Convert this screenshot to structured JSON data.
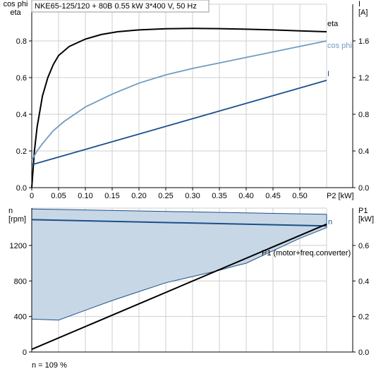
{
  "chart_data": [
    {
      "type": "line",
      "title": "NKE65-125/120 + 80B   0.55 kW   3*400 V, 50 Hz",
      "ylabel_left": "cos phi\neta",
      "ylabel_right": "I\n[A]",
      "xlabel": "P2 [kW]",
      "xlim": [
        0,
        0.55
      ],
      "ylim_left": [
        0,
        1.0
      ],
      "ylim_right": [
        0,
        2.0
      ],
      "x_ticks": [
        0,
        0.05,
        0.1,
        0.15,
        0.2,
        0.25,
        0.3,
        0.35,
        0.4,
        0.45,
        0.5
      ],
      "x_tick_labels": [
        "0",
        "0.05",
        "0.10",
        "0.15",
        "0.20",
        "0.25",
        "0.30",
        "0.35",
        "0.40",
        "0.45",
        "0.50"
      ],
      "y_ticks_left": [
        0.0,
        0.2,
        0.4,
        0.6,
        0.8
      ],
      "y_tick_labels_left": [
        "0.0",
        "0.2",
        "0.4",
        "0.6",
        "0.8"
      ],
      "y_ticks_right": [
        0.0,
        0.4,
        0.8,
        1.2,
        1.6
      ],
      "y_tick_labels_right": [
        "0.0",
        "0.4",
        "0.8",
        "1.2",
        "1.6"
      ],
      "grid": true,
      "series": [
        {
          "name": "eta",
          "axis": "left",
          "color": "#000000",
          "points": [
            [
              0,
              0.0
            ],
            [
              0.005,
              0.2
            ],
            [
              0.01,
              0.33
            ],
            [
              0.02,
              0.5
            ],
            [
              0.03,
              0.6
            ],
            [
              0.04,
              0.67
            ],
            [
              0.05,
              0.72
            ],
            [
              0.07,
              0.77
            ],
            [
              0.1,
              0.81
            ],
            [
              0.13,
              0.835
            ],
            [
              0.16,
              0.85
            ],
            [
              0.2,
              0.86
            ],
            [
              0.25,
              0.866
            ],
            [
              0.3,
              0.868
            ],
            [
              0.35,
              0.867
            ],
            [
              0.4,
              0.864
            ],
            [
              0.45,
              0.86
            ],
            [
              0.5,
              0.855
            ],
            [
              0.55,
              0.85
            ]
          ]
        },
        {
          "name": "cos phi",
          "axis": "left",
          "color": "#6f9cc1",
          "points": [
            [
              0,
              0.15
            ],
            [
              0.01,
              0.2
            ],
            [
              0.02,
              0.24
            ],
            [
              0.04,
              0.31
            ],
            [
              0.06,
              0.36
            ],
            [
              0.08,
              0.4
            ],
            [
              0.1,
              0.44
            ],
            [
              0.15,
              0.51
            ],
            [
              0.2,
              0.57
            ],
            [
              0.25,
              0.615
            ],
            [
              0.3,
              0.65
            ],
            [
              0.35,
              0.68
            ],
            [
              0.4,
              0.71
            ],
            [
              0.45,
              0.74
            ],
            [
              0.5,
              0.77
            ],
            [
              0.55,
              0.8
            ]
          ]
        },
        {
          "name": "I",
          "axis": "right",
          "color": "#1b4f8a",
          "points": [
            [
              0,
              0.25
            ],
            [
              0.55,
              1.17
            ]
          ]
        }
      ]
    },
    {
      "type": "area",
      "ylabel_left": "n\n[rpm]",
      "ylabel_right": "P1\n[kW]",
      "xlim": [
        0,
        0.55
      ],
      "ylim_left": [
        0,
        1620
      ],
      "ylim_right": [
        0,
        0.81
      ],
      "y_ticks_left": [
        0,
        400,
        800,
        1200
      ],
      "y_tick_labels_left": [
        "0",
        "400",
        "800",
        "1200"
      ],
      "y_ticks_right": [
        0.0,
        0.2,
        0.4,
        0.6
      ],
      "y_tick_labels_right": [
        "0.0",
        "0.2",
        "0.4",
        "0.6"
      ],
      "grid": true,
      "area": {
        "color": "#c8d7e6",
        "upper": [
          [
            0,
            1610
          ],
          [
            0.55,
            1550
          ]
        ],
        "lower": [
          [
            0,
            370
          ],
          [
            0.05,
            360
          ],
          [
            0.1,
            470
          ],
          [
            0.15,
            580
          ],
          [
            0.2,
            680
          ],
          [
            0.25,
            780
          ],
          [
            0.3,
            850
          ],
          [
            0.35,
            920
          ],
          [
            0.38,
            970
          ],
          [
            0.4,
            1000
          ],
          [
            0.45,
            1140
          ],
          [
            0.5,
            1280
          ],
          [
            0.55,
            1400
          ]
        ]
      },
      "series": [
        {
          "name": "n",
          "axis": "left",
          "color": "#1b4f8a",
          "points": [
            [
              0,
              1490
            ],
            [
              0.55,
              1420
            ]
          ]
        },
        {
          "name": "P1 (motor+freq.converter)",
          "axis": "right",
          "color": "#000000",
          "points": [
            [
              0,
              0.015
            ],
            [
              0.55,
              0.72
            ]
          ]
        }
      ]
    }
  ],
  "footer_note": "n = 109 %"
}
